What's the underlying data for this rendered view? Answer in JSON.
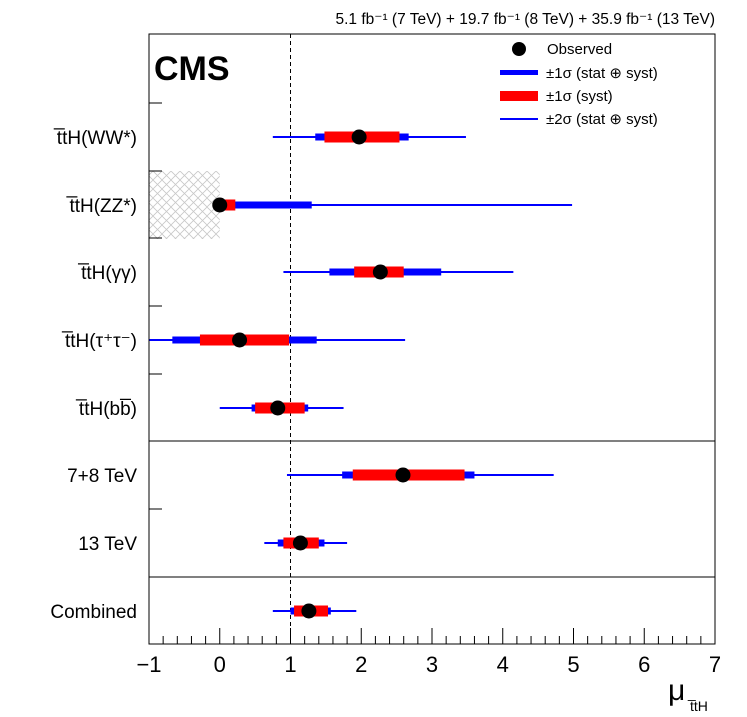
{
  "chart_data": {
    "type": "scatter",
    "title": "CMS",
    "lumi_text": "5.1 fb⁻¹ (7 TeV) + 19.7 fb⁻¹ (8 TeV) + 35.9 fb⁻¹ (13 TeV)",
    "xlabel": "μ",
    "xlabel_sub": "t̅tH",
    "xlim": [
      -1,
      7
    ],
    "ticks": [
      -1,
      0,
      1,
      2,
      3,
      4,
      5,
      6,
      7
    ],
    "tick_labels": [
      "−1",
      "0",
      "1",
      "2",
      "3",
      "4",
      "5",
      "6",
      "7"
    ],
    "reference_line": 1,
    "legend": {
      "observed": "Observed",
      "sigma1_total": "±1σ (stat ⊕ syst)",
      "sigma1_syst": "±1σ (syst)",
      "sigma2_total": "±2σ (stat ⊕ syst)"
    },
    "colors": {
      "total": "#0000ff",
      "syst": "#ff0000",
      "hatch": "#cccccc",
      "point": "#000000"
    },
    "channels": [
      {
        "label": "t̅tH(WW*)",
        "mu": 1.97,
        "sigma1_total": [
          1.35,
          2.67
        ],
        "sigma1_syst": [
          1.48,
          2.54
        ],
        "sigma2_total": [
          0.75,
          3.48
        ]
      },
      {
        "label": "t̅tH(ZZ*)",
        "mu": 0.0,
        "sigma1_total": [
          0.0,
          1.3
        ],
        "sigma1_syst": [
          0.0,
          0.22
        ],
        "sigma2_total": [
          0.0,
          4.98
        ],
        "excluded_region": [
          -1,
          0
        ]
      },
      {
        "label": "t̅tH(γγ)",
        "mu": 2.27,
        "sigma1_total": [
          1.55,
          3.13
        ],
        "sigma1_syst": [
          1.9,
          2.6
        ],
        "sigma2_total": [
          0.9,
          4.15
        ]
      },
      {
        "label": "t̅tH(τ⁺τ⁻)",
        "mu": 0.28,
        "sigma1_total": [
          -0.67,
          1.37
        ],
        "sigma1_syst": [
          -0.28,
          0.98
        ],
        "sigma2_total": [
          -1.0,
          2.62
        ]
      },
      {
        "label": "t̅tH(bb̅)",
        "mu": 0.82,
        "sigma1_total": [
          0.45,
          1.25
        ],
        "sigma1_syst": [
          0.5,
          1.2
        ],
        "sigma2_total": [
          0.0,
          1.75
        ]
      },
      {
        "label": "7+8 TeV",
        "mu": 2.59,
        "sigma1_total": [
          1.73,
          3.6
        ],
        "sigma1_syst": [
          1.88,
          3.46
        ],
        "sigma2_total": [
          0.95,
          4.72
        ]
      },
      {
        "label": "13 TeV",
        "mu": 1.14,
        "sigma1_total": [
          0.82,
          1.48
        ],
        "sigma1_syst": [
          0.9,
          1.4
        ],
        "sigma2_total": [
          0.63,
          1.8
        ]
      },
      {
        "label": "Combined",
        "mu": 1.26,
        "sigma1_total": [
          1.0,
          1.57
        ],
        "sigma1_syst": [
          1.05,
          1.53
        ],
        "sigma2_total": [
          0.75,
          1.93
        ]
      }
    ]
  }
}
